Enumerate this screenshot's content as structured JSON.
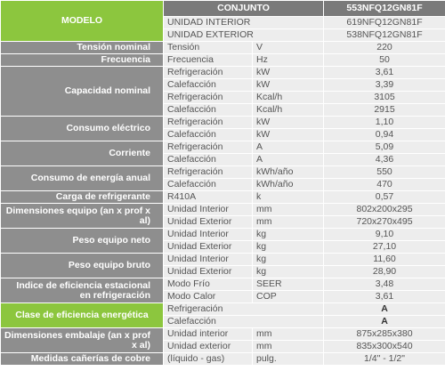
{
  "header": {
    "model_label": "MODELO",
    "set_label": "CONJUNTO",
    "set_value": "553NFQ12GN81F",
    "units": [
      [
        "UNIDAD INTERIOR",
        "619NFQ12GN81F"
      ],
      [
        "UNIDAD EXTERIOR",
        "538NFQ12GN81F"
      ]
    ]
  },
  "groups": [
    {
      "label": "Tensión nominal",
      "rows": [
        [
          "Tensión",
          "V",
          "220"
        ]
      ]
    },
    {
      "label": "Frecuencia",
      "rows": [
        [
          "Frecuencia",
          "Hz",
          "50"
        ]
      ]
    },
    {
      "label": "Capacidad nominal",
      "rows": [
        [
          "Refrigeración",
          "kW",
          "3,61"
        ],
        [
          "Calefacción",
          "kW",
          "3,39"
        ],
        [
          "Refrigeración",
          "Kcal/h",
          "3105"
        ],
        [
          "Calefacción",
          "Kcal/h",
          "2915"
        ]
      ]
    },
    {
      "label": "Consumo eléctrico",
      "rows": [
        [
          "Refrigeración",
          "kW",
          "1,10"
        ],
        [
          "Calefacción",
          "kW",
          "0,94"
        ]
      ]
    },
    {
      "label": "Corriente",
      "rows": [
        [
          "Refrigeración",
          "A",
          "5,09"
        ],
        [
          "Calefacción",
          "A",
          "4,36"
        ]
      ]
    },
    {
      "label": "Consumo de energía anual",
      "rows": [
        [
          "Refrigeración",
          "kWh/año",
          "550"
        ],
        [
          "Calefacción",
          "kWh/año",
          "470"
        ]
      ]
    },
    {
      "label": "Carga de refrigerante",
      "rows": [
        [
          "R410A",
          "k",
          "0,57"
        ]
      ]
    },
    {
      "label": "Dimensiones equipo (an x prof x al)",
      "rows": [
        [
          "Unidad Interior",
          "mm",
          "802x200x295"
        ],
        [
          "Unidad Exterior",
          "mm",
          "720x270x495"
        ]
      ]
    },
    {
      "label": "Peso equipo neto",
      "rows": [
        [
          "Unidad Interior",
          "kg",
          "9,10"
        ],
        [
          "Unidad Exterior",
          "kg",
          "27,10"
        ]
      ]
    },
    {
      "label": "Peso equipo bruto",
      "rows": [
        [
          "Unidad Interior",
          "kg",
          "11,60"
        ],
        [
          "Unidad Exterior",
          "kg",
          "28,90"
        ]
      ]
    },
    {
      "label": "Indice de eficiencia estacional en refrigeración",
      "rows": [
        [
          "Modo Frío",
          "SEER",
          "3,48"
        ],
        [
          "Modo Calor",
          "COP",
          "3,61"
        ]
      ]
    },
    {
      "label": "Clase de eficiencia energética",
      "rows": [
        [
          "Refrigeración",
          "A"
        ],
        [
          "Calefacción",
          "A"
        ]
      ]
    },
    {
      "label": "Dimensiones embalaje (an x prof x al)",
      "rows": [
        [
          "Unidad interior",
          "mm",
          "875x285x380"
        ],
        [
          "Unidad exterior",
          "mm",
          "835x300x540"
        ]
      ]
    },
    {
      "label": "Medidas cañerías de cobre",
      "rows": [
        [
          "(líquido - gas)",
          "pulg.",
          "1/4\" - 1/2\""
        ]
      ]
    }
  ]
}
